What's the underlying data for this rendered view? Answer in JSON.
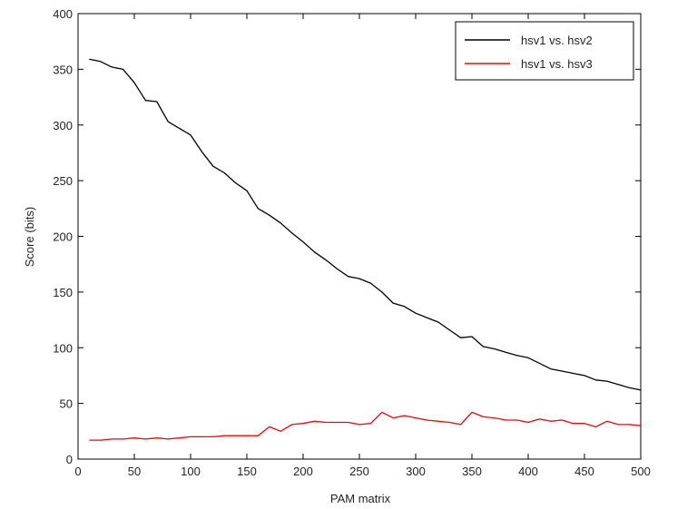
{
  "chart_data": {
    "type": "line",
    "title": "",
    "xlabel": "PAM matrix",
    "ylabel": "Score (bits)",
    "xlim": [
      0,
      500
    ],
    "ylim": [
      0,
      400
    ],
    "xticks": [
      0,
      50,
      100,
      150,
      200,
      250,
      300,
      350,
      400,
      450,
      500
    ],
    "yticks": [
      0,
      50,
      100,
      150,
      200,
      250,
      300,
      350,
      400
    ],
    "grid": false,
    "legend": "top-right",
    "x": [
      10,
      20,
      30,
      40,
      50,
      60,
      70,
      80,
      90,
      100,
      110,
      120,
      130,
      140,
      150,
      160,
      170,
      180,
      190,
      200,
      210,
      220,
      230,
      240,
      250,
      260,
      270,
      280,
      290,
      300,
      310,
      320,
      330,
      340,
      350,
      360,
      370,
      380,
      390,
      400,
      410,
      420,
      430,
      440,
      450,
      460,
      470,
      480,
      490,
      500
    ],
    "series": [
      {
        "name": "hsv1 vs. hsv2",
        "color": "#000000",
        "values": [
          359,
          357,
          352,
          350,
          338,
          322,
          321,
          303,
          297,
          291,
          276,
          263,
          257,
          248,
          241,
          225,
          219,
          212,
          203,
          195,
          186,
          179,
          171,
          164,
          162,
          158,
          150,
          140,
          137,
          131,
          127,
          123,
          116,
          109,
          110,
          101,
          99,
          96,
          93,
          91,
          86,
          81,
          79,
          77,
          75,
          71,
          70,
          67,
          64,
          62
        ]
      },
      {
        "name": "hsv1 vs. hsv3",
        "color": "#ff0000",
        "values": [
          17,
          17,
          18,
          18,
          19,
          18,
          19,
          18,
          19,
          20,
          20,
          20,
          21,
          21,
          21,
          21,
          29,
          25,
          31,
          32,
          34,
          33,
          33,
          33,
          31,
          32,
          42,
          37,
          39,
          37,
          35,
          34,
          33,
          31,
          42,
          38,
          37,
          35,
          35,
          33,
          36,
          34,
          35,
          32,
          32,
          29,
          34,
          31,
          31,
          30
        ]
      }
    ]
  }
}
